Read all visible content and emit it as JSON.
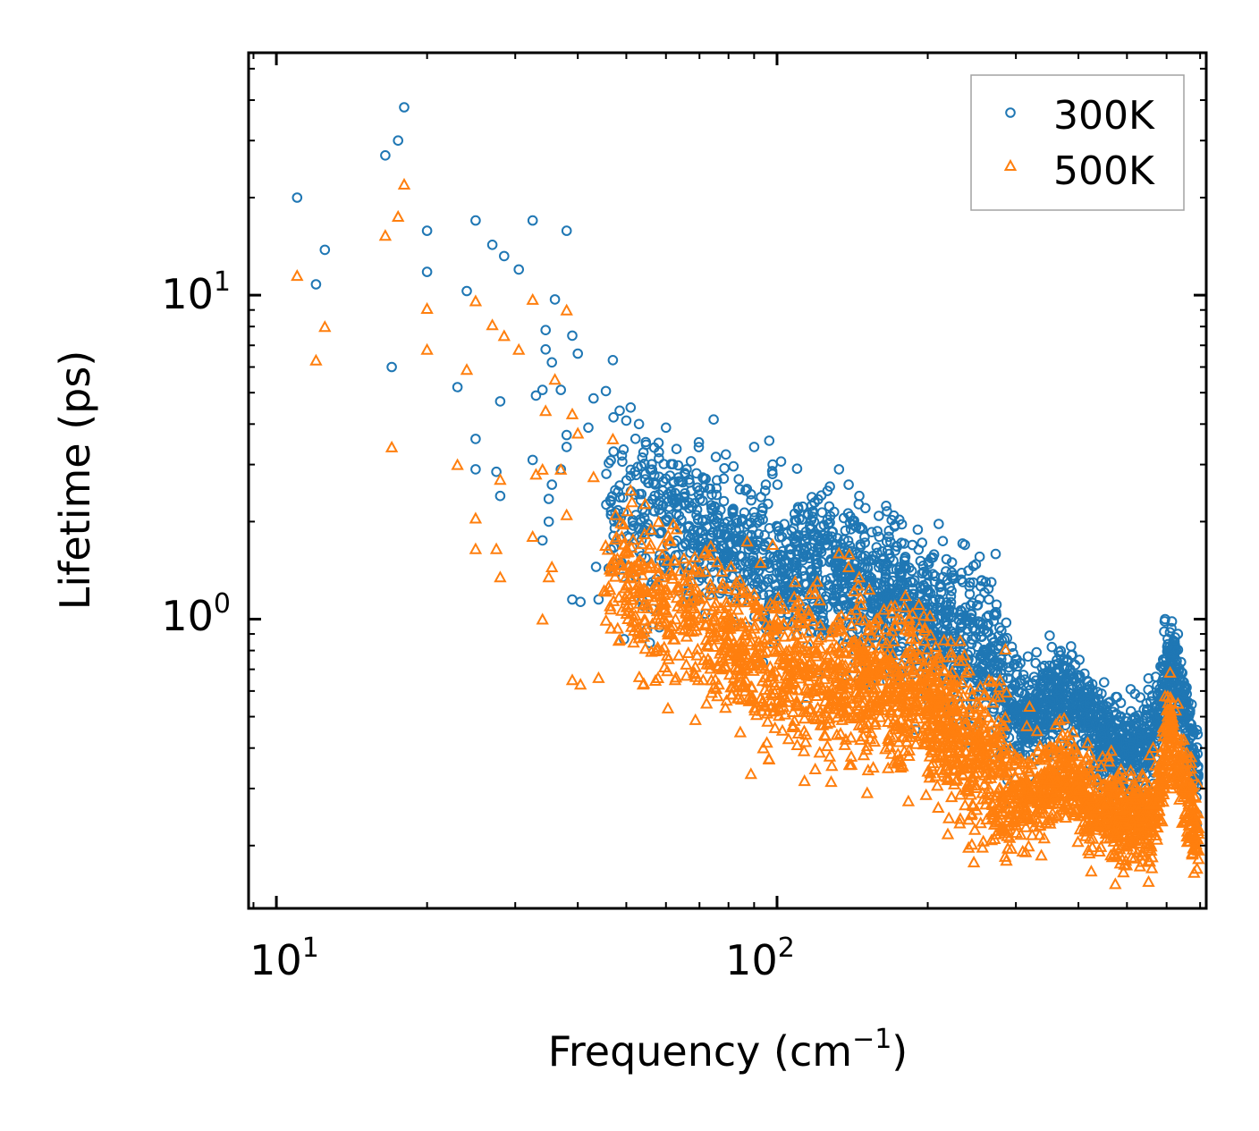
{
  "chart_data": {
    "type": "scatter",
    "title": "",
    "xlabel": "Frequency (cm",
    "xlabel_sup": "−1",
    "xlabel_close": ")",
    "ylabel": "Lifetime (ps)",
    "xscale": "log",
    "yscale": "log",
    "xlim": [
      8.8,
      720
    ],
    "ylim": [
      0.128,
      56
    ],
    "grid": false,
    "legend": "top-right",
    "x_ticks": [
      {
        "value": 10,
        "base": "10",
        "exp": "1"
      },
      {
        "value": 100,
        "base": "10",
        "exp": "2"
      }
    ],
    "y_ticks": [
      {
        "value": 1,
        "base": "10",
        "exp": "0"
      },
      {
        "value": 10,
        "base": "10",
        "exp": "1"
      }
    ],
    "series": [
      {
        "name": "300K",
        "marker": "circle",
        "color": "#1f77b4",
        "points": [
          [
            11.0,
            20.0
          ],
          [
            12.0,
            10.8
          ],
          [
            12.5,
            13.8
          ],
          [
            16.5,
            27.0
          ],
          [
            17.0,
            6.0
          ],
          [
            17.5,
            30.0
          ],
          [
            18.0,
            38.0
          ],
          [
            20.0,
            15.8
          ],
          [
            20.0,
            11.8
          ],
          [
            23.0,
            5.2
          ],
          [
            24.0,
            10.3
          ],
          [
            25.0,
            17.0
          ],
          [
            25.0,
            3.6
          ],
          [
            25.0,
            2.9
          ],
          [
            27.0,
            14.3
          ],
          [
            27.5,
            2.85
          ],
          [
            28.0,
            4.7
          ],
          [
            28.0,
            2.4
          ],
          [
            28.5,
            13.2
          ],
          [
            30.5,
            12.0
          ],
          [
            32.5,
            17.0
          ],
          [
            32.5,
            3.1
          ],
          [
            33.0,
            4.9
          ],
          [
            34.0,
            5.1
          ],
          [
            34.0,
            1.75
          ],
          [
            34.5,
            7.8
          ],
          [
            34.5,
            6.8
          ],
          [
            35.0,
            2.35
          ],
          [
            35.0,
            2.0
          ],
          [
            35.5,
            6.2
          ],
          [
            35.5,
            2.6
          ],
          [
            36.0,
            9.7
          ],
          [
            37.0,
            5.1
          ],
          [
            37.0,
            2.9
          ],
          [
            38.0,
            15.8
          ],
          [
            38.0,
            3.7
          ],
          [
            38.0,
            3.4
          ],
          [
            39.0,
            7.5
          ],
          [
            39.0,
            1.15
          ],
          [
            40.0,
            6.6
          ],
          [
            40.5,
            1.13
          ],
          [
            42.0,
            3.9
          ],
          [
            43.0,
            4.8
          ],
          [
            43.5,
            1.45
          ],
          [
            44.0,
            1.15
          ],
          [
            47.0,
            6.3
          ],
          [
            47.5,
            2.5
          ],
          [
            48.5,
            4.4
          ],
          [
            49.0,
            3.2
          ],
          [
            50.0,
            4.1
          ],
          [
            51.0,
            4.5
          ],
          [
            53.0,
            4.0
          ],
          [
            54.0,
            1.1
          ],
          [
            55.0,
            0.93
          ],
          [
            58.0,
            3.5
          ],
          [
            60.0,
            3.9
          ],
          [
            63.0,
            3.35
          ],
          [
            66.0,
            2.9
          ],
          [
            70.0,
            2.5
          ],
          [
            74.0,
            2.2
          ],
          [
            90.0,
            3.4
          ],
          [
            95.0,
            2.6
          ],
          [
            98.0,
            3.0
          ],
          [
            118.0,
            2.15
          ],
          [
            133.0,
            2.9
          ],
          [
            139.0,
            2.6
          ],
          [
            146.0,
            2.4
          ],
          [
            172.0,
            1.95
          ],
          [
            207.0,
            1.15
          ],
          [
            225.0,
            1.05
          ],
          [
            245.0,
            1.0
          ],
          [
            265.0,
            1.15
          ],
          [
            268.0,
            1.3
          ],
          [
            293.0,
            0.55
          ],
          [
            320.0,
            0.55
          ],
          [
            350.0,
            0.5
          ],
          [
            385.0,
            0.7
          ],
          [
            420.0,
            0.55
          ],
          [
            455.0,
            0.5
          ],
          [
            510.0,
            0.4
          ],
          [
            555.0,
            0.43
          ],
          [
            596.0,
            1.0
          ],
          [
            632.0,
            0.9
          ],
          [
            675.0,
            0.35
          ],
          [
            690.0,
            0.25
          ]
        ]
      },
      {
        "name": "500K",
        "marker": "triangle",
        "color": "#ff7f0e",
        "points": [
          [
            11.0,
            11.5
          ],
          [
            12.0,
            6.3
          ],
          [
            12.5,
            8.0
          ],
          [
            16.5,
            15.3
          ],
          [
            17.0,
            3.4
          ],
          [
            17.5,
            17.5
          ],
          [
            18.0,
            22.0
          ],
          [
            20.0,
            9.1
          ],
          [
            20.0,
            6.8
          ],
          [
            23.0,
            3.0
          ],
          [
            24.0,
            5.9
          ],
          [
            25.0,
            9.6
          ],
          [
            25.0,
            2.05
          ],
          [
            25.0,
            1.65
          ],
          [
            27.0,
            8.1
          ],
          [
            27.5,
            1.65
          ],
          [
            28.0,
            2.7
          ],
          [
            28.0,
            1.35
          ],
          [
            28.5,
            7.5
          ],
          [
            30.5,
            6.8
          ],
          [
            32.5,
            9.7
          ],
          [
            32.5,
            1.8
          ],
          [
            33.0,
            2.8
          ],
          [
            34.0,
            2.9
          ],
          [
            34.0,
            1.0
          ],
          [
            34.5,
            4.4
          ],
          [
            35.0,
            1.35
          ],
          [
            35.5,
            1.45
          ],
          [
            36.0,
            5.5
          ],
          [
            37.0,
            2.9
          ],
          [
            38.0,
            9.0
          ],
          [
            38.0,
            2.1
          ],
          [
            39.0,
            4.3
          ],
          [
            39.0,
            0.65
          ],
          [
            40.0,
            3.75
          ],
          [
            40.5,
            0.63
          ],
          [
            43.0,
            2.75
          ],
          [
            44.0,
            0.66
          ],
          [
            47.0,
            3.6
          ],
          [
            49.0,
            1.8
          ],
          [
            51.0,
            2.5
          ],
          [
            54.0,
            0.63
          ],
          [
            58.0,
            2.0
          ],
          [
            63.0,
            1.9
          ],
          [
            70.0,
            1.4
          ],
          [
            74.0,
            1.25
          ],
          [
            90.0,
            1.2
          ],
          [
            98.0,
            1.7
          ],
          [
            118.0,
            1.25
          ],
          [
            133.0,
            1.6
          ],
          [
            139.0,
            1.45
          ],
          [
            146.0,
            1.35
          ],
          [
            172.0,
            1.1
          ],
          [
            207.0,
            0.65
          ],
          [
            225.0,
            0.6
          ],
          [
            245.0,
            0.58
          ],
          [
            265.0,
            0.65
          ],
          [
            293.0,
            0.3
          ],
          [
            320.0,
            0.34
          ],
          [
            350.0,
            0.32
          ],
          [
            385.0,
            0.4
          ],
          [
            420.0,
            0.3
          ],
          [
            455.0,
            0.27
          ],
          [
            510.0,
            0.24
          ],
          [
            555.0,
            0.27
          ],
          [
            596.0,
            0.58
          ],
          [
            632.0,
            0.55
          ],
          [
            675.0,
            0.19
          ],
          [
            690.0,
            0.17
          ]
        ]
      }
    ]
  }
}
